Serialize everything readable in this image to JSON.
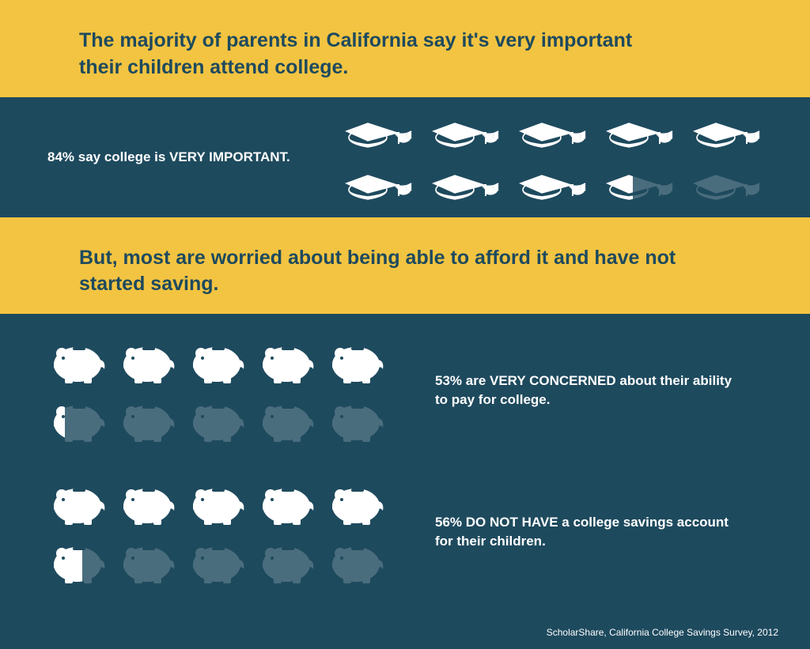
{
  "colors": {
    "yellow": "#f3c441",
    "dark_teal": "#1e4a5e",
    "icon_light": "#ffffff",
    "icon_dim": "#4a6d7d"
  },
  "header1": {
    "text": "The majority of parents in California say it's very important their children attend college."
  },
  "stat1": {
    "text": "84% say college is VERY IMPORTANT.",
    "icon": "grad-cap",
    "total": 10,
    "cols": 5,
    "full": 8,
    "partial_fill": 0.4
  },
  "header2": {
    "text": "But, most are worried about being able to afford it and have not started saving."
  },
  "stat2": {
    "text": "53% are VERY CONCERNED about their ability to pay for college.",
    "icon": "piggy-bank",
    "total": 10,
    "cols": 5,
    "full": 5,
    "partial_fill": 0.3
  },
  "stat3": {
    "text": "56% DO NOT HAVE a college savings account for their children.",
    "icon": "piggy-bank",
    "total": 10,
    "cols": 5,
    "full": 5,
    "partial_fill": 0.6
  },
  "source": "ScholarShare, California College Savings Survey, 2012"
}
